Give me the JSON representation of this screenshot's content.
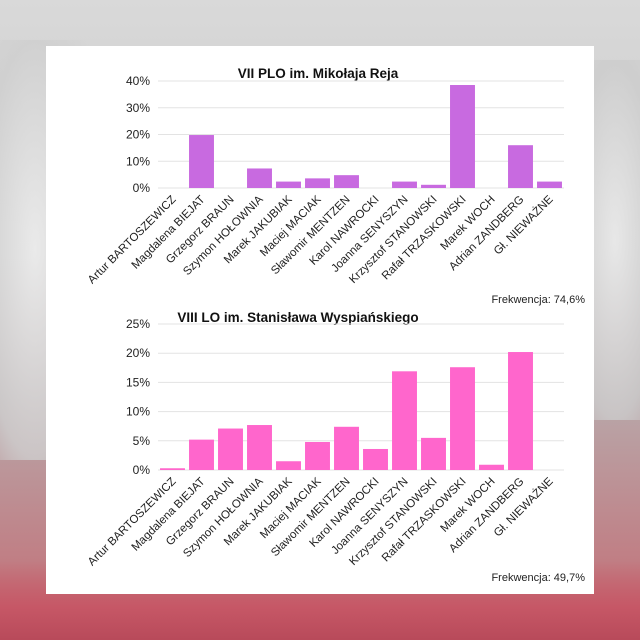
{
  "charts": [
    {
      "title": "VII PLO im. Mikołaja Reja",
      "turnout_label": "Frekwencja: 74,6%",
      "color": "#c86ae0"
    },
    {
      "title": "VIII LO im. Stanisława Wyspiańskiego",
      "turnout_label": "Frekwencja: 49,7%",
      "color": "#ff66cc"
    }
  ],
  "chart_data": [
    {
      "type": "bar",
      "title": "VII PLO im. Mikołaja Reja",
      "categories": [
        "Artur BARTOSZEWICZ",
        "Magdalena BIEJAT",
        "Grzegorz BRAUN",
        "Szymon HOŁOWNIA",
        "Marek JAKUBIAK",
        "Maciej MACIAK",
        "Sławomir MENTZEN",
        "Karol NAWROCKI",
        "Joanna SENYSZYN",
        "Krzysztof STANOWSKI",
        "Rafał TRZASKOWSKI",
        "Marek WOCH",
        "Adrian ZANDBERG",
        "Gł. NIEWAŻNE"
      ],
      "values": [
        0,
        19.8,
        0,
        7.3,
        2.4,
        3.6,
        4.8,
        0,
        2.4,
        1.2,
        38.5,
        0,
        16.0,
        2.4
      ],
      "ylim": [
        0,
        40
      ],
      "yticks": [
        "0%",
        "10%",
        "20%",
        "30%",
        "40%"
      ],
      "grid": true,
      "color": "#c86ae0"
    },
    {
      "type": "bar",
      "title": "VIII LO im. Stanisława Wyspiańskiego",
      "categories": [
        "Artur BARTOSZEWICZ",
        "Magdalena BIEJAT",
        "Grzegorz BRAUN",
        "Szymon HOŁOWNIA",
        "Marek JAKUBIAK",
        "Maciej MACIAK",
        "Sławomir MENTZEN",
        "Karol NAWROCKI",
        "Joanna SENYSZYN",
        "Krzysztof STANOWSKI",
        "Rafał TRZASKOWSKI",
        "Marek WOCH",
        "Adrian ZANDBERG",
        "Gł. NIEWAŻNE"
      ],
      "values": [
        0.3,
        5.2,
        7.1,
        7.7,
        1.5,
        4.8,
        7.4,
        3.6,
        16.9,
        5.5,
        17.6,
        0.9,
        20.2,
        0
      ],
      "ylim": [
        0,
        25
      ],
      "yticks": [
        "0%",
        "5%",
        "10%",
        "15%",
        "20%",
        "25%"
      ],
      "grid": true,
      "color": "#ff66cc"
    }
  ]
}
